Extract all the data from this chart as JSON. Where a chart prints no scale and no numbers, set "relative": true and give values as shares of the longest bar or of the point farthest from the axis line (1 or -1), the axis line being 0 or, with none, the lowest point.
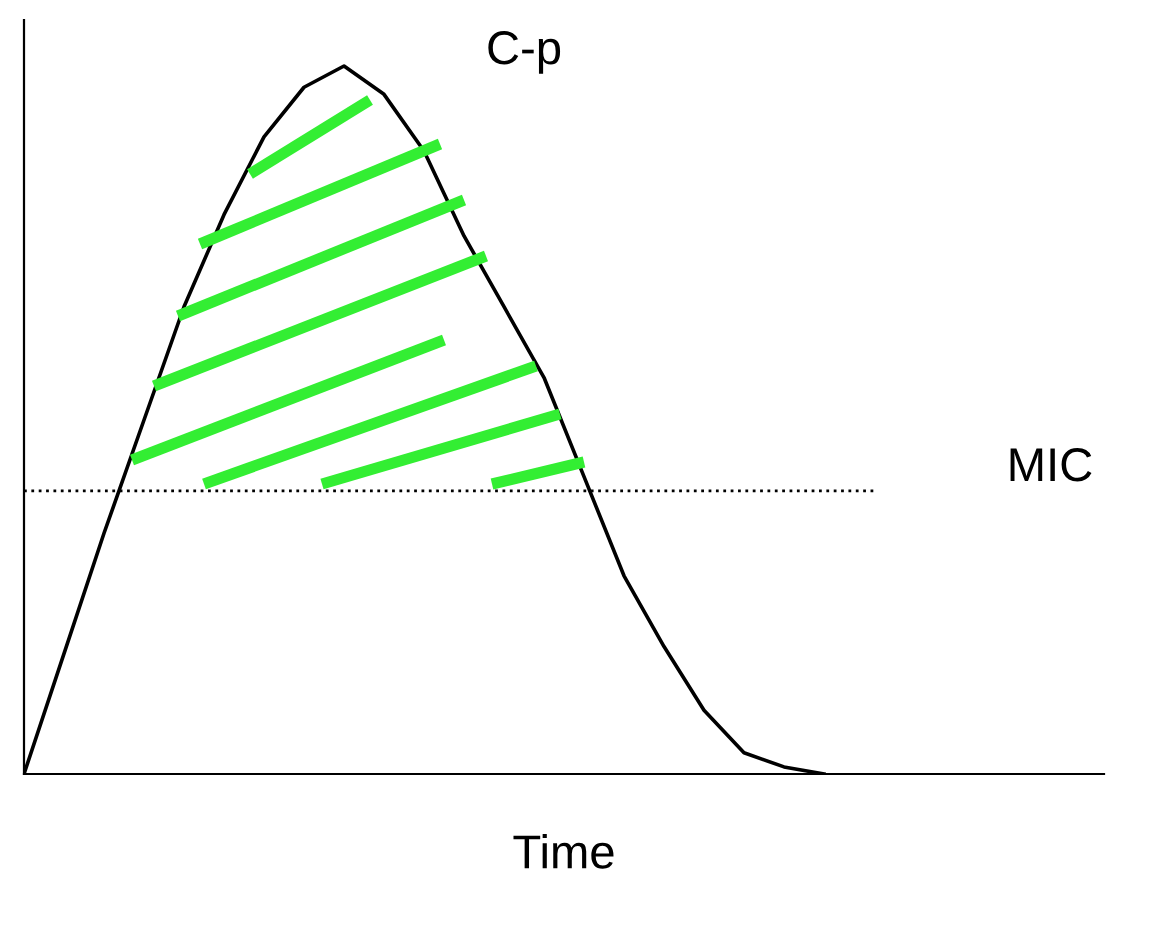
{
  "chart_data": {
    "type": "line",
    "relative": true,
    "xlabel": "Time",
    "categories": [
      null,
      null,
      null,
      null,
      null,
      null,
      null,
      null,
      null,
      null,
      null,
      null,
      null,
      null,
      null,
      null,
      null,
      null,
      null,
      null,
      null,
      null,
      null,
      null,
      null,
      null,
      null,
      null
    ],
    "series": [
      {
        "name": "C-p",
        "color": "#000000",
        "values": [
          0,
          0.17,
          0.34,
          0.5,
          0.66,
          0.79,
          0.9,
          0.97,
          1.0,
          0.96,
          0.88,
          0.76,
          0.66,
          0.56,
          0.42,
          0.28,
          0.18,
          0.09,
          0.03,
          0.01,
          0,
          null,
          null,
          null,
          null,
          null,
          null,
          null
        ]
      }
    ],
    "ref_lines": [
      {
        "axis": "y",
        "value": 0.4,
        "label": "MIC",
        "color": "#000000",
        "line_style": "dotted"
      }
    ],
    "legend": false,
    "marker": "none",
    "line_style": "solid"
  }
}
